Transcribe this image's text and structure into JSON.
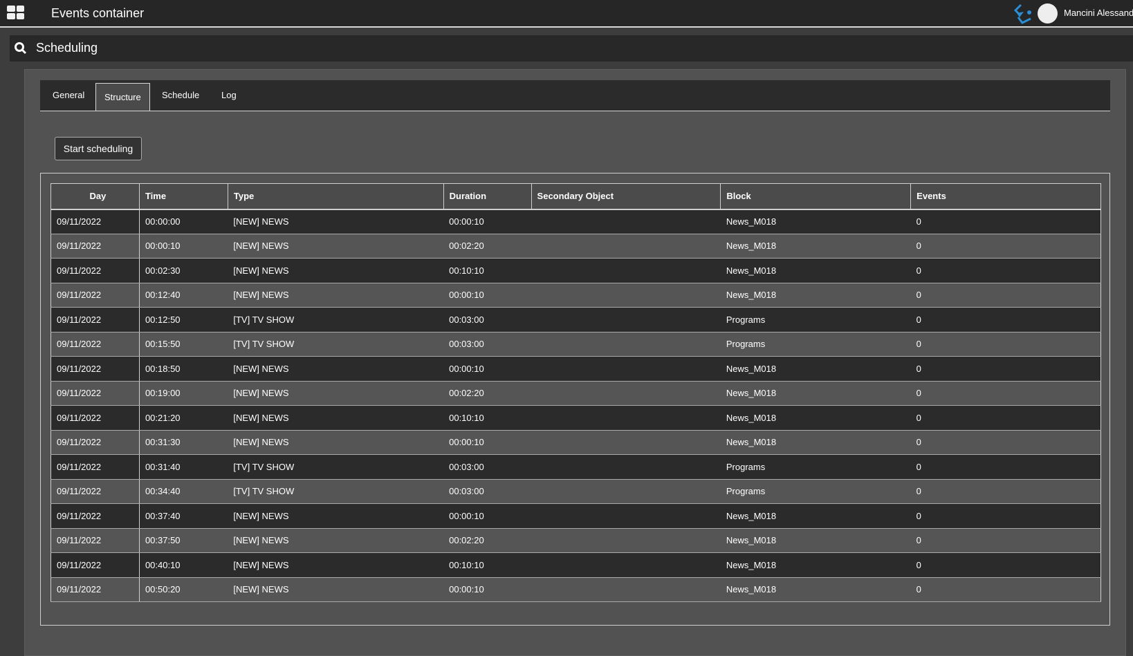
{
  "header": {
    "title": "Events container",
    "user": "Mancini Alessand",
    "accent": "#2a8fd6"
  },
  "search": {
    "title": "Scheduling"
  },
  "tabs": [
    {
      "label": "General"
    },
    {
      "label": "Structure",
      "active": true
    },
    {
      "label": "Schedule"
    },
    {
      "label": "Log"
    }
  ],
  "actions": {
    "start": "Start scheduling"
  },
  "table": {
    "columns": [
      "Day",
      "Time",
      "Type",
      "Duration",
      "Secondary Object",
      "Block",
      "Events"
    ],
    "rows": [
      [
        "09/11/2022",
        "00:00:00",
        "[NEW] NEWS",
        "00:00:10",
        "",
        "News_M018",
        "0"
      ],
      [
        "09/11/2022",
        "00:00:10",
        "[NEW] NEWS",
        "00:02:20",
        "",
        "News_M018",
        "0"
      ],
      [
        "09/11/2022",
        "00:02:30",
        "[NEW] NEWS",
        "00:10:10",
        "",
        "News_M018",
        "0"
      ],
      [
        "09/11/2022",
        "00:12:40",
        "[NEW] NEWS",
        "00:00:10",
        "",
        "News_M018",
        "0"
      ],
      [
        "09/11/2022",
        "00:12:50",
        "[TV] TV SHOW",
        "00:03:00",
        "",
        "Programs",
        "0"
      ],
      [
        "09/11/2022",
        "00:15:50",
        "[TV] TV SHOW",
        "00:03:00",
        "",
        "Programs",
        "0"
      ],
      [
        "09/11/2022",
        "00:18:50",
        "[NEW] NEWS",
        "00:00:10",
        "",
        "News_M018",
        "0"
      ],
      [
        "09/11/2022",
        "00:19:00",
        "[NEW] NEWS",
        "00:02:20",
        "",
        "News_M018",
        "0"
      ],
      [
        "09/11/2022",
        "00:21:20",
        "[NEW] NEWS",
        "00:10:10",
        "",
        "News_M018",
        "0"
      ],
      [
        "09/11/2022",
        "00:31:30",
        "[NEW] NEWS",
        "00:00:10",
        "",
        "News_M018",
        "0"
      ],
      [
        "09/11/2022",
        "00:31:40",
        "[TV] TV SHOW",
        "00:03:00",
        "",
        "Programs",
        "0"
      ],
      [
        "09/11/2022",
        "00:34:40",
        "[TV] TV SHOW",
        "00:03:00",
        "",
        "Programs",
        "0"
      ],
      [
        "09/11/2022",
        "00:37:40",
        "[NEW] NEWS",
        "00:00:10",
        "",
        "News_M018",
        "0"
      ],
      [
        "09/11/2022",
        "00:37:50",
        "[NEW] NEWS",
        "00:02:20",
        "",
        "News_M018",
        "0"
      ],
      [
        "09/11/2022",
        "00:40:10",
        "[NEW] NEWS",
        "00:10:10",
        "",
        "News_M018",
        "0"
      ],
      [
        "09/11/2022",
        "00:50:20",
        "[NEW] NEWS",
        "00:00:10",
        "",
        "News_M018",
        "0"
      ]
    ]
  }
}
